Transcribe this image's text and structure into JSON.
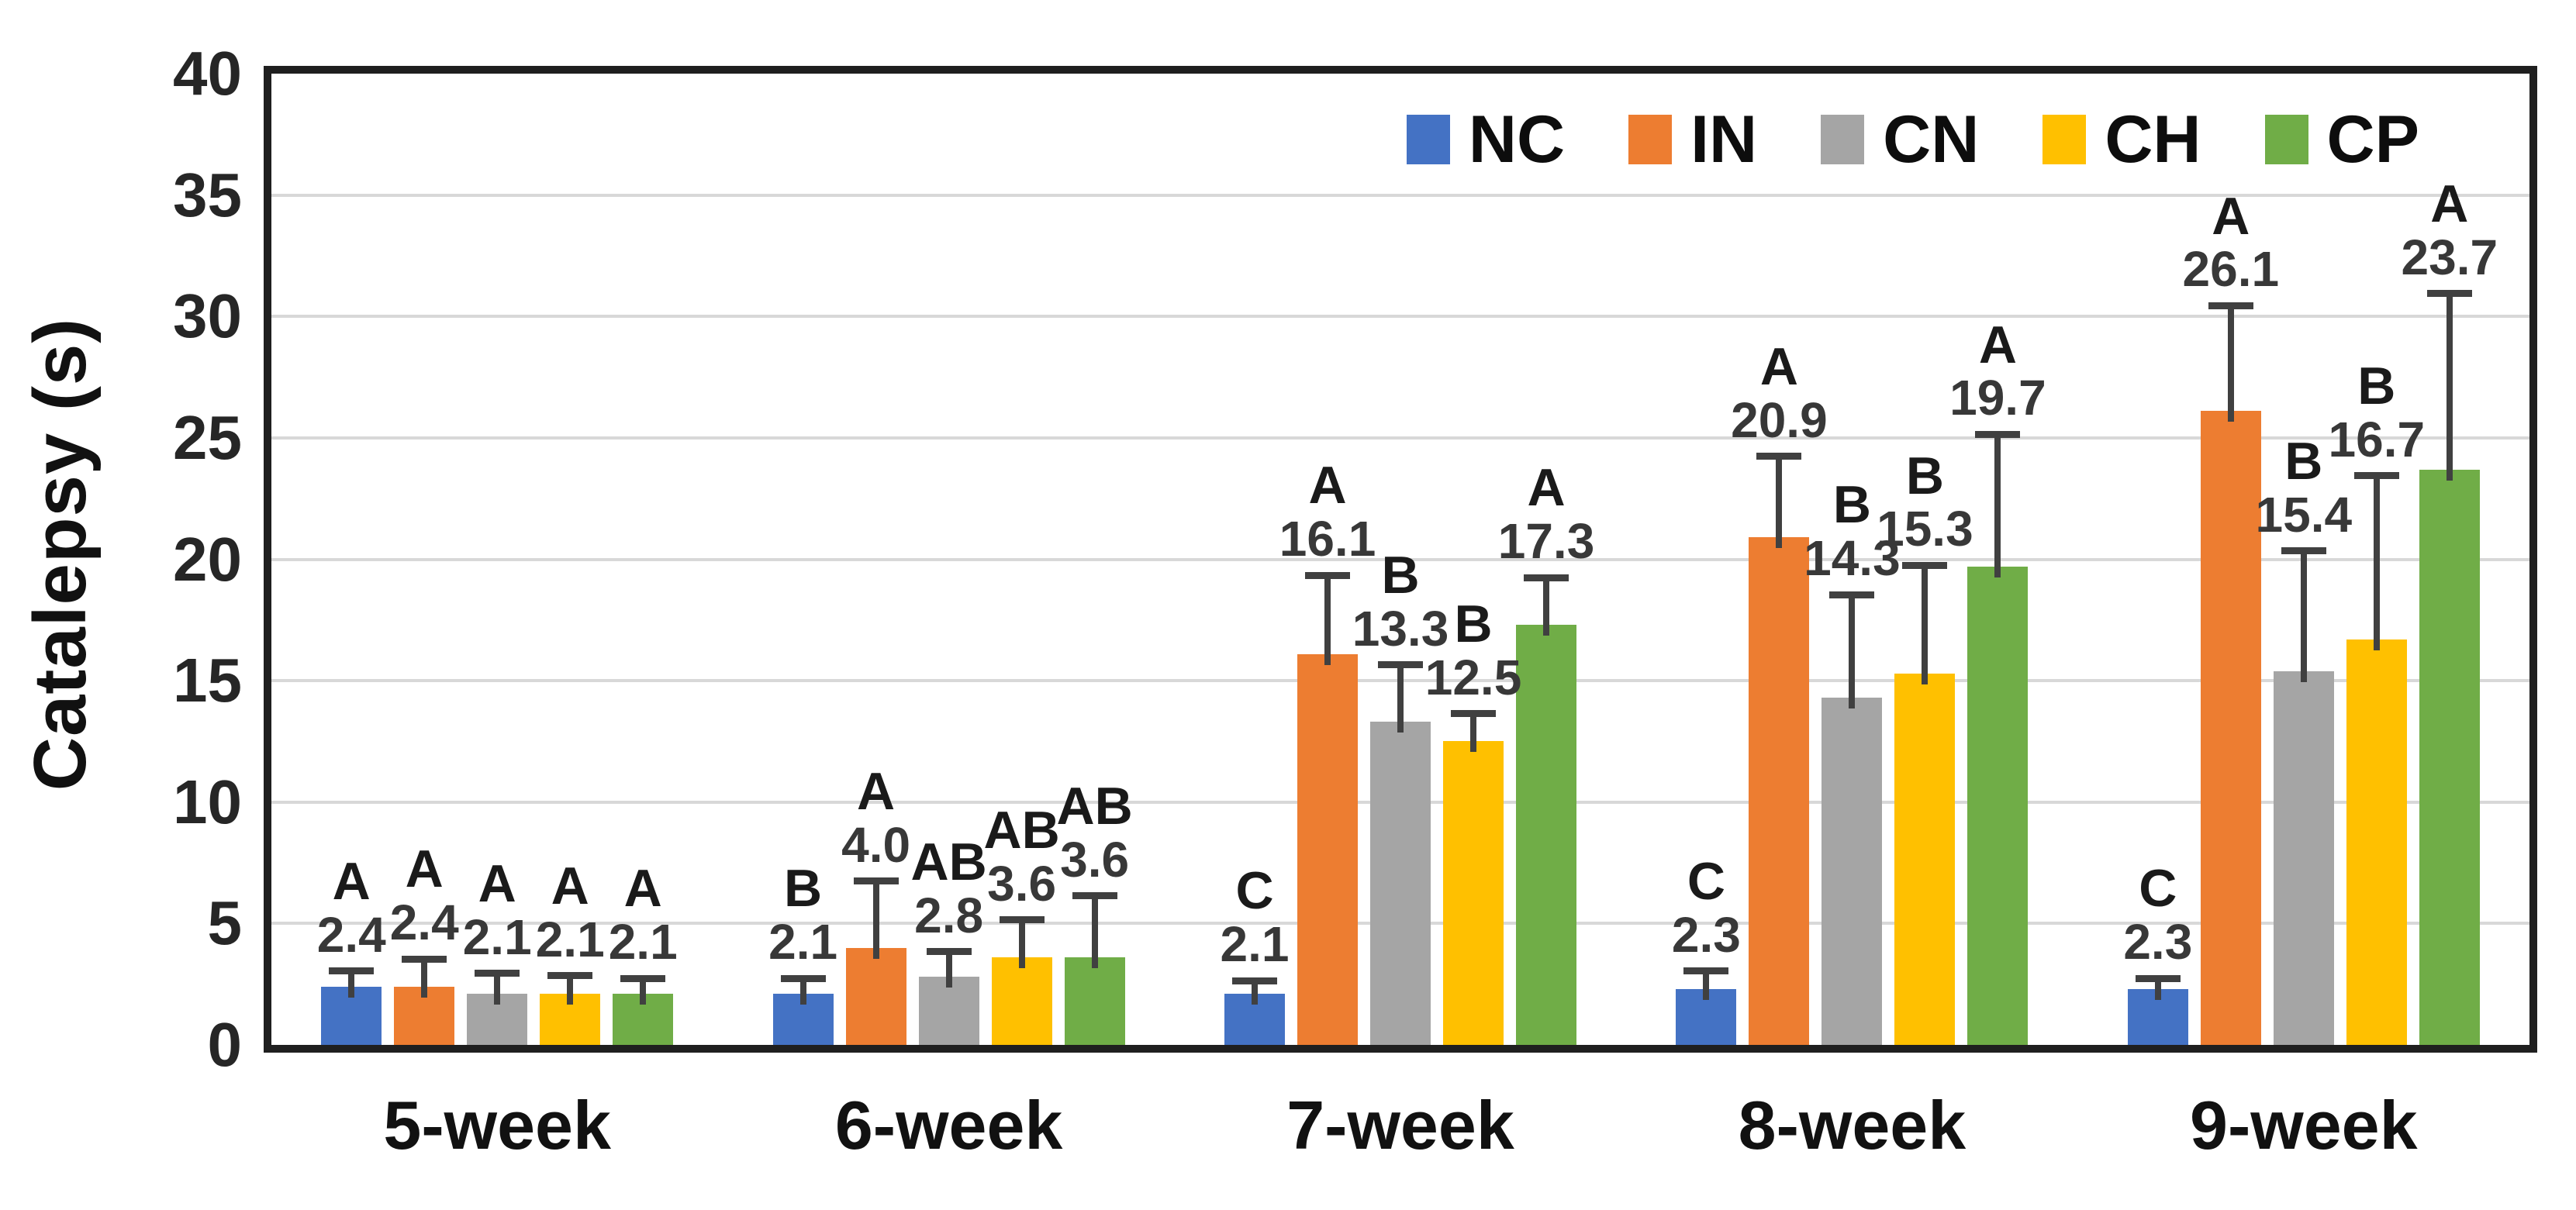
{
  "chart_data": {
    "type": "bar",
    "title": "",
    "xlabel": "",
    "ylabel": "Catalepsy (s)",
    "ylim": [
      0,
      40
    ],
    "yticks": [
      0,
      5,
      10,
      15,
      20,
      25,
      30,
      35,
      40
    ],
    "grid": "horizontal",
    "legend_position": "top-right-inside",
    "categories": [
      "5-week",
      "6-week",
      "7-week",
      "8-week",
      "9-week"
    ],
    "series": [
      {
        "name": "NC",
        "color": "#4472C4",
        "values": [
          2.4,
          2.1,
          2.1,
          2.3,
          2.3
        ],
        "errors_up": [
          0.5,
          0.5,
          0.4,
          0.6,
          0.3
        ],
        "letters": [
          "A",
          "B",
          "C",
          "C",
          "C"
        ]
      },
      {
        "name": "IN",
        "color": "#ED7D31",
        "values": [
          2.4,
          4.0,
          16.1,
          20.9,
          26.1
        ],
        "errors_up": [
          1.0,
          2.6,
          3.1,
          3.2,
          4.2
        ],
        "letters": [
          "A",
          "A",
          "A",
          "A",
          "A"
        ]
      },
      {
        "name": "CN",
        "color": "#A5A5A5",
        "values": [
          2.1,
          2.8,
          13.3,
          14.3,
          15.4
        ],
        "errors_up": [
          0.7,
          0.9,
          2.2,
          4.1,
          4.8
        ],
        "letters": [
          "A",
          "AB",
          "B",
          "B",
          "B"
        ]
      },
      {
        "name": "CH",
        "color": "#FFC000",
        "values": [
          2.1,
          3.6,
          12.5,
          15.3,
          16.7
        ],
        "errors_up": [
          0.6,
          1.4,
          1.0,
          4.3,
          6.6
        ],
        "letters": [
          "A",
          "AB",
          "B",
          "B",
          "B"
        ]
      },
      {
        "name": "CP",
        "color": "#70AD47",
        "values": [
          2.1,
          3.6,
          17.3,
          19.7,
          23.7
        ],
        "errors_up": [
          0.5,
          2.4,
          1.8,
          5.3,
          7.1
        ],
        "letters": [
          "A",
          "AB",
          "A",
          "A",
          "A"
        ]
      }
    ],
    "value_label_format": "1-decimal",
    "colors": {
      "axis_border": "#1f1f1f",
      "gridline": "#d8d8d8",
      "error_bar": "#404040",
      "letter_text": "#1a1a1a",
      "value_text": "#383838",
      "tick_text": "#262626"
    }
  }
}
